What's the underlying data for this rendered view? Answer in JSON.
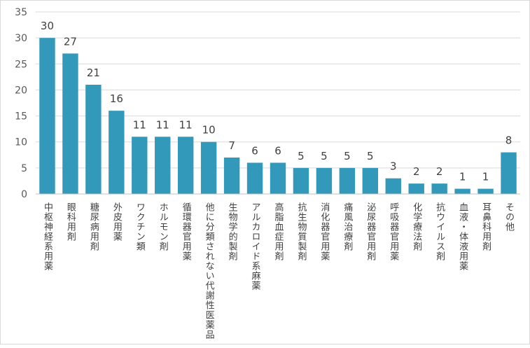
{
  "chart_data": {
    "type": "bar",
    "title": "",
    "xlabel": "",
    "ylabel": "",
    "ylim": [
      0,
      35
    ],
    "yticks": [
      0,
      5,
      10,
      15,
      20,
      25,
      30,
      35
    ],
    "grid": true,
    "legend": "none",
    "bar_color": "#3399bb",
    "categories": [
      "中枢神経系用薬",
      "眼科用剤",
      "糖尿病用剤",
      "外皮用薬",
      "ワクチン類",
      "ホルモン剤",
      "循環器官用薬",
      "他に分類されない代謝性医薬品",
      "生物学的製剤",
      "アルカロイド系麻薬",
      "高脂血症用剤",
      "抗生物質製剤",
      "消化器官用薬",
      "痛風治療剤",
      "泌尿器官用剤",
      "呼吸器官用薬",
      "化学療法剤",
      "抗ウイルス剤",
      "血液・体液用薬",
      "耳鼻科用剤",
      "その他"
    ],
    "values": [
      30,
      27,
      21,
      16,
      11,
      11,
      11,
      10,
      7,
      6,
      6,
      5,
      5,
      5,
      5,
      3,
      2,
      2,
      1,
      1,
      8
    ]
  }
}
